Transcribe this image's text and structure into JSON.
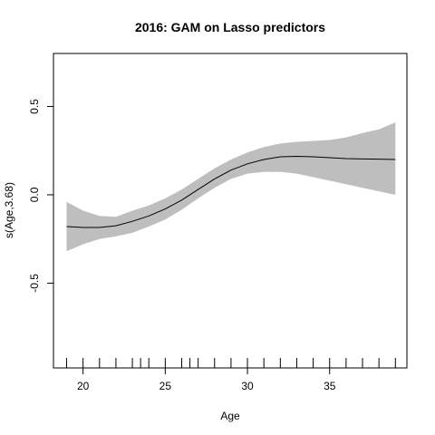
{
  "chart_data": {
    "type": "area",
    "title": "2016: GAM on Lasso predictors",
    "xlabel": "Age",
    "ylabel": "s(Age,3.68)",
    "xlim": [
      18.2,
      39.7
    ],
    "ylim": [
      -0.98,
      0.8
    ],
    "x_ticks": [
      20,
      25,
      30,
      35
    ],
    "y_ticks": [
      -0.5,
      0.0,
      0.5
    ],
    "x_tick_labels": [
      "20",
      "25",
      "30",
      "35"
    ],
    "y_tick_labels": [
      "-0.5",
      "0.0",
      "0.5"
    ],
    "grid": false,
    "colors": {
      "band": "#bebebe",
      "line": "#000000"
    },
    "series": [
      {
        "x": [
          19,
          20,
          21,
          22,
          23,
          24,
          25,
          26,
          27,
          28,
          29,
          30,
          31,
          32,
          33,
          34,
          35,
          36,
          37,
          38,
          39
        ],
        "values": [
          -0.18,
          -0.185,
          -0.185,
          -0.175,
          -0.15,
          -0.12,
          -0.08,
          -0.03,
          0.03,
          0.09,
          0.14,
          0.175,
          0.2,
          0.215,
          0.218,
          0.215,
          0.21,
          0.205,
          0.203,
          0.202,
          0.2
        ],
        "lower": [
          -0.32,
          -0.28,
          -0.25,
          -0.235,
          -0.215,
          -0.18,
          -0.14,
          -0.085,
          -0.02,
          0.04,
          0.09,
          0.12,
          0.13,
          0.13,
          0.12,
          0.1,
          0.08,
          0.06,
          0.04,
          0.02,
          0.0
        ],
        "upper": [
          -0.04,
          -0.09,
          -0.12,
          -0.125,
          -0.09,
          -0.06,
          -0.02,
          0.03,
          0.09,
          0.15,
          0.2,
          0.24,
          0.27,
          0.29,
          0.3,
          0.305,
          0.31,
          0.325,
          0.35,
          0.37,
          0.41
        ]
      }
    ],
    "rug": [
      19,
      20,
      21,
      22,
      23,
      23.5,
      24,
      25,
      26,
      26.5,
      27,
      28,
      29,
      30,
      31,
      32,
      33,
      34,
      35,
      36,
      37,
      38,
      39
    ]
  }
}
